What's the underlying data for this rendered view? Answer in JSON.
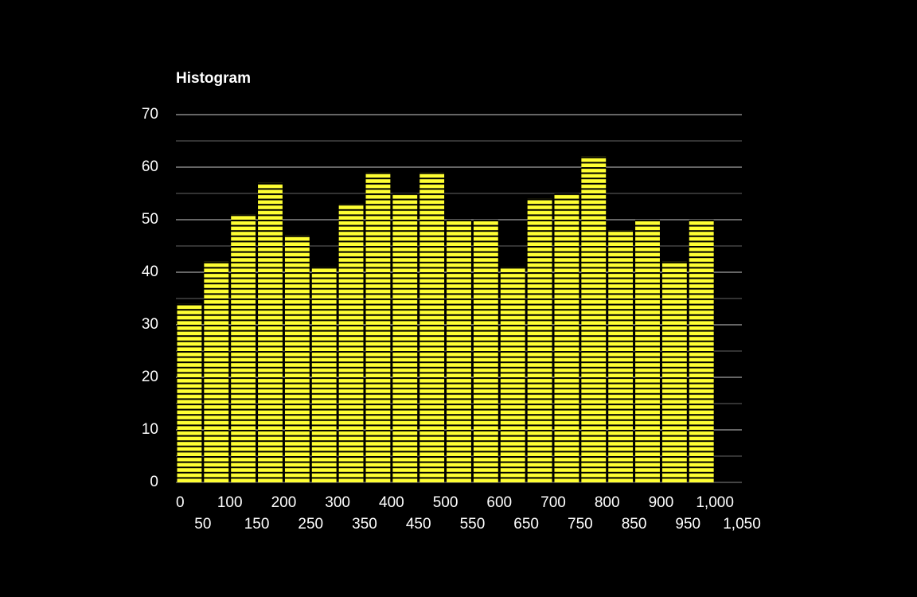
{
  "chart_data": {
    "type": "histogram",
    "title": "Histogram",
    "bins": [
      0,
      50,
      100,
      150,
      200,
      250,
      300,
      350,
      400,
      450,
      500,
      550,
      600,
      650,
      700,
      750,
      800,
      850,
      900,
      950,
      1000
    ],
    "values": [
      34,
      42,
      51,
      57,
      47,
      41,
      53,
      59,
      55,
      59,
      50,
      50,
      41,
      54,
      55,
      62,
      48,
      50,
      42,
      50
    ],
    "color": "#ffff33",
    "hatch": "horizontal",
    "xlim": [
      0,
      1050
    ],
    "xticks": [
      0,
      50,
      100,
      150,
      200,
      250,
      300,
      350,
      400,
      450,
      500,
      550,
      600,
      650,
      700,
      750,
      800,
      850,
      900,
      950,
      {
        "value": 1000,
        "label": "1,000"
      },
      {
        "value": 1050,
        "label": "1,050"
      }
    ],
    "ylim": [
      0,
      70
    ],
    "yticks": [
      0,
      10,
      20,
      30,
      40,
      50,
      60,
      70
    ],
    "minor_yticks": [
      5,
      15,
      25,
      35,
      45,
      55,
      65
    ],
    "grid": true
  }
}
